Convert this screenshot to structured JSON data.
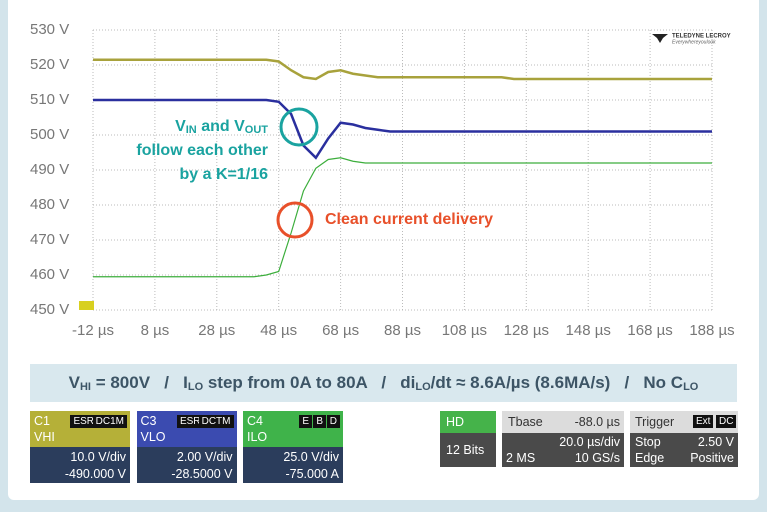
{
  "chart_data": {
    "type": "line",
    "x": [
      -12,
      -8,
      -4,
      0,
      4,
      8,
      12,
      16,
      20,
      24,
      28,
      32,
      36,
      40,
      44,
      48,
      52,
      56,
      60,
      64,
      68,
      72,
      76,
      80,
      84,
      88,
      92,
      96,
      100,
      104,
      108,
      112,
      116,
      120,
      124,
      128,
      132,
      136,
      140,
      144,
      148,
      152,
      156,
      160,
      164,
      168,
      172,
      176,
      180,
      184,
      188
    ],
    "series": [
      {
        "name": "VHI",
        "color": "#a8a23c",
        "values": [
          521.5,
          521.5,
          521.5,
          521.5,
          521.5,
          521.5,
          521.5,
          521.5,
          521.5,
          521.5,
          521.5,
          521.5,
          521.5,
          521.5,
          521.5,
          521,
          518.5,
          516.5,
          516,
          518,
          518.5,
          517.5,
          517,
          516.5,
          516.5,
          516.5,
          516.5,
          516.5,
          516.5,
          516.5,
          516.5,
          516.5,
          516.5,
          516.5,
          516,
          516,
          516,
          516,
          516,
          516,
          516,
          516,
          516,
          516,
          516,
          516,
          516,
          516,
          516,
          516,
          516
        ]
      },
      {
        "name": "VLO",
        "color": "#2a2f9e",
        "values": [
          510,
          510,
          510,
          510,
          510,
          510,
          510,
          510,
          510,
          510,
          510,
          510,
          510,
          510,
          510,
          509.5,
          506,
          497,
          493.5,
          499,
          503.5,
          503,
          502,
          501.5,
          501,
          501,
          501,
          501,
          501,
          501,
          501,
          501,
          501,
          501,
          501,
          501,
          501,
          501,
          501,
          501,
          501,
          501,
          501,
          501,
          501,
          501,
          501,
          501,
          501,
          501,
          501
        ]
      },
      {
        "name": "ILO",
        "color": "#3cae3c",
        "values": [
          459.5,
          459.5,
          459.5,
          459.5,
          459.5,
          459.5,
          459.5,
          459.5,
          459.5,
          459.5,
          459.5,
          459.5,
          459.5,
          459.5,
          460,
          461,
          472,
          484,
          490.5,
          493,
          493.5,
          492.5,
          492,
          492,
          492,
          492,
          492,
          492,
          492,
          492,
          492,
          492,
          492,
          492,
          492,
          492,
          492,
          492,
          492,
          492,
          492,
          492,
          492,
          492,
          492,
          492,
          492,
          492,
          492,
          492,
          492
        ]
      }
    ],
    "xlim": [
      -12,
      188
    ],
    "ylim": [
      450,
      530
    ],
    "xticks": [
      {
        "value": -12,
        "label": "-12 µs"
      },
      {
        "value": 8,
        "label": "8 µs"
      },
      {
        "value": 28,
        "label": "28 µs"
      },
      {
        "value": 48,
        "label": "48 µs"
      },
      {
        "value": 68,
        "label": "68 µs"
      },
      {
        "value": 88,
        "label": "88 µs"
      },
      {
        "value": 108,
        "label": "108 µs"
      },
      {
        "value": 128,
        "label": "128 µs"
      },
      {
        "value": 148,
        "label": "148 µs"
      },
      {
        "value": 168,
        "label": "168 µs"
      },
      {
        "value": 188,
        "label": "188 µs"
      }
    ],
    "yticks": [
      {
        "value": 450,
        "label": "450 V"
      },
      {
        "value": 460,
        "label": "460 V"
      },
      {
        "value": 470,
        "label": "470 V"
      },
      {
        "value": 480,
        "label": "480 V"
      },
      {
        "value": 490,
        "label": "490 V"
      },
      {
        "value": 500,
        "label": "500 V"
      },
      {
        "value": 510,
        "label": "510 V"
      },
      {
        "value": 520,
        "label": "520 V"
      },
      {
        "value": 530,
        "label": "530 V"
      }
    ],
    "grid": true,
    "annotations": {
      "follow": [
        "V",
        "IN",
        " and V",
        "OUT",
        "follow each other",
        "by a K=1/16"
      ],
      "clean": "Clean current delivery"
    },
    "logo": [
      "TELEDYNE LECROY",
      "Everywhereyoulook"
    ]
  },
  "info": [
    "V",
    "HI",
    " = 800V   /   I",
    "LO",
    " step from 0A to 80A   /   di",
    "LO",
    "/dt ≈ 8.6A/µs (8.6MA/s)   /   No C",
    "LO"
  ],
  "channels": [
    {
      "id": "C1",
      "label": "VHI",
      "badges": [
        "ESR",
        "DC1M"
      ],
      "scale": "10.0 V/div",
      "offset": "-490.000 V"
    },
    {
      "id": "C3",
      "label": "VLO",
      "badges": [
        "ESR",
        "DCTM"
      ],
      "scale": "2.00 V/div",
      "offset": "-28.5000 V"
    },
    {
      "id": "C4",
      "label": "ILO",
      "badges": [
        "E",
        "B",
        "D"
      ],
      "scale": "25.0 V/div",
      "offset": "-75.000 A"
    }
  ],
  "acquisition": {
    "mode": "HD",
    "bits": "12 Bits"
  },
  "timebase": {
    "label": "Tbase",
    "delay": "-88.0 µs",
    "scale": "20.0 µs/div",
    "memory": "2 MS",
    "rate": "10 GS/s"
  },
  "trigger": {
    "label": "Trigger",
    "badges": [
      "Ext",
      "DC"
    ],
    "state": "Stop",
    "level": "2.50 V",
    "type": "Edge",
    "slope": "Positive"
  }
}
